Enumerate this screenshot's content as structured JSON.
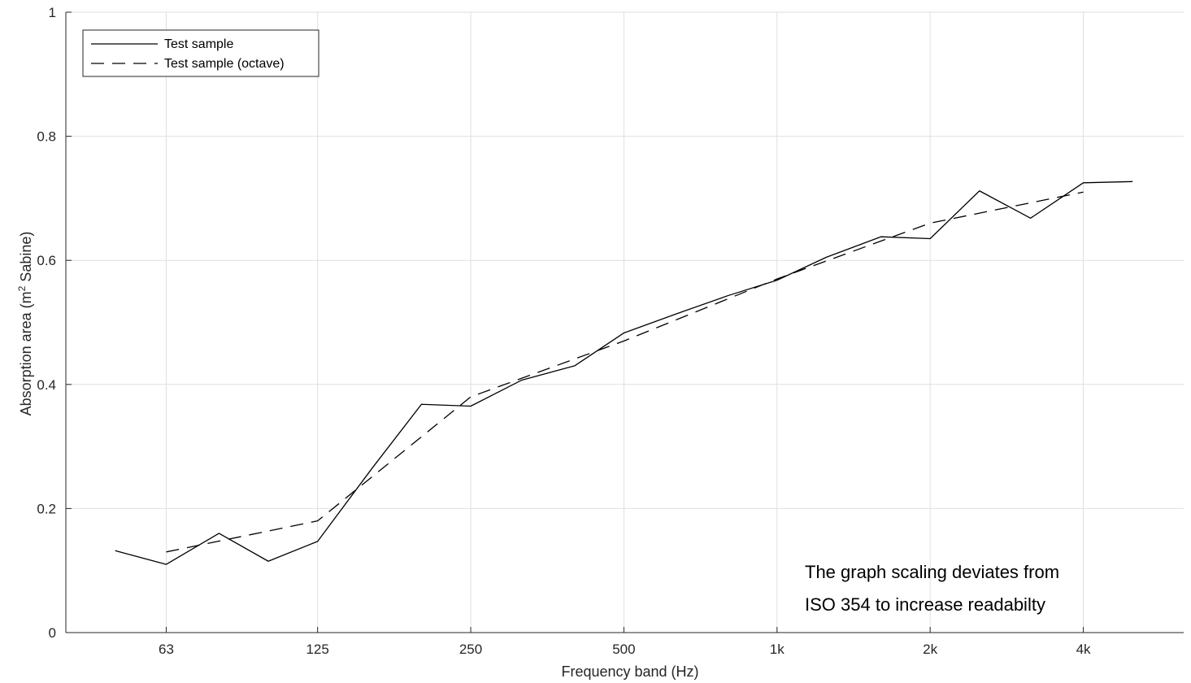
{
  "chart_data": {
    "type": "line",
    "xscale": "log",
    "x": [
      50,
      63,
      80,
      100,
      125,
      160,
      200,
      250,
      315,
      400,
      500,
      630,
      800,
      1000,
      1250,
      1600,
      2000,
      2500,
      3150,
      4000,
      5000
    ],
    "series": [
      {
        "name": "Test sample",
        "style": "solid",
        "color": "#000000",
        "x": [
          50,
          63,
          80,
          100,
          125,
          160,
          200,
          250,
          315,
          400,
          500,
          630,
          800,
          1000,
          1250,
          1600,
          2000,
          2500,
          3150,
          4000,
          5000
        ],
        "values": [
          0.132,
          0.11,
          0.16,
          0.115,
          0.147,
          0.265,
          0.368,
          0.365,
          0.407,
          0.43,
          0.483,
          0.513,
          0.543,
          0.568,
          0.605,
          0.638,
          0.635,
          0.712,
          0.668,
          0.725,
          0.727
        ]
      },
      {
        "name": "Test sample (octave)",
        "style": "dashed",
        "color": "#000000",
        "x": [
          63,
          125,
          250,
          500,
          1000,
          2000,
          4000
        ],
        "values": [
          0.13,
          0.18,
          0.38,
          0.47,
          0.57,
          0.66,
          0.71
        ]
      }
    ],
    "xticks": [
      63,
      125,
      250,
      500,
      1000,
      2000,
      4000
    ],
    "xtick_labels": [
      "63",
      "125",
      "250",
      "500",
      "1k",
      "2k",
      "4k"
    ],
    "xlim": [
      40,
      6300
    ],
    "ylim": [
      0,
      1
    ],
    "yticks": [
      0,
      0.2,
      0.4,
      0.6,
      0.8,
      1
    ],
    "ytick_labels": [
      "0",
      "0.2",
      "0.4",
      "0.6",
      "0.8",
      "1"
    ],
    "xlabel": "Frequency band (Hz)",
    "ylabel_prefix": "Absorption area (m",
    "ylabel_sup": "2",
    "ylabel_suffix": " Sabine)",
    "grid": true,
    "legend_position": "top-left",
    "annotation_lines": [
      "The graph scaling deviates from",
      "ISO 354 to increase readabilty"
    ]
  }
}
